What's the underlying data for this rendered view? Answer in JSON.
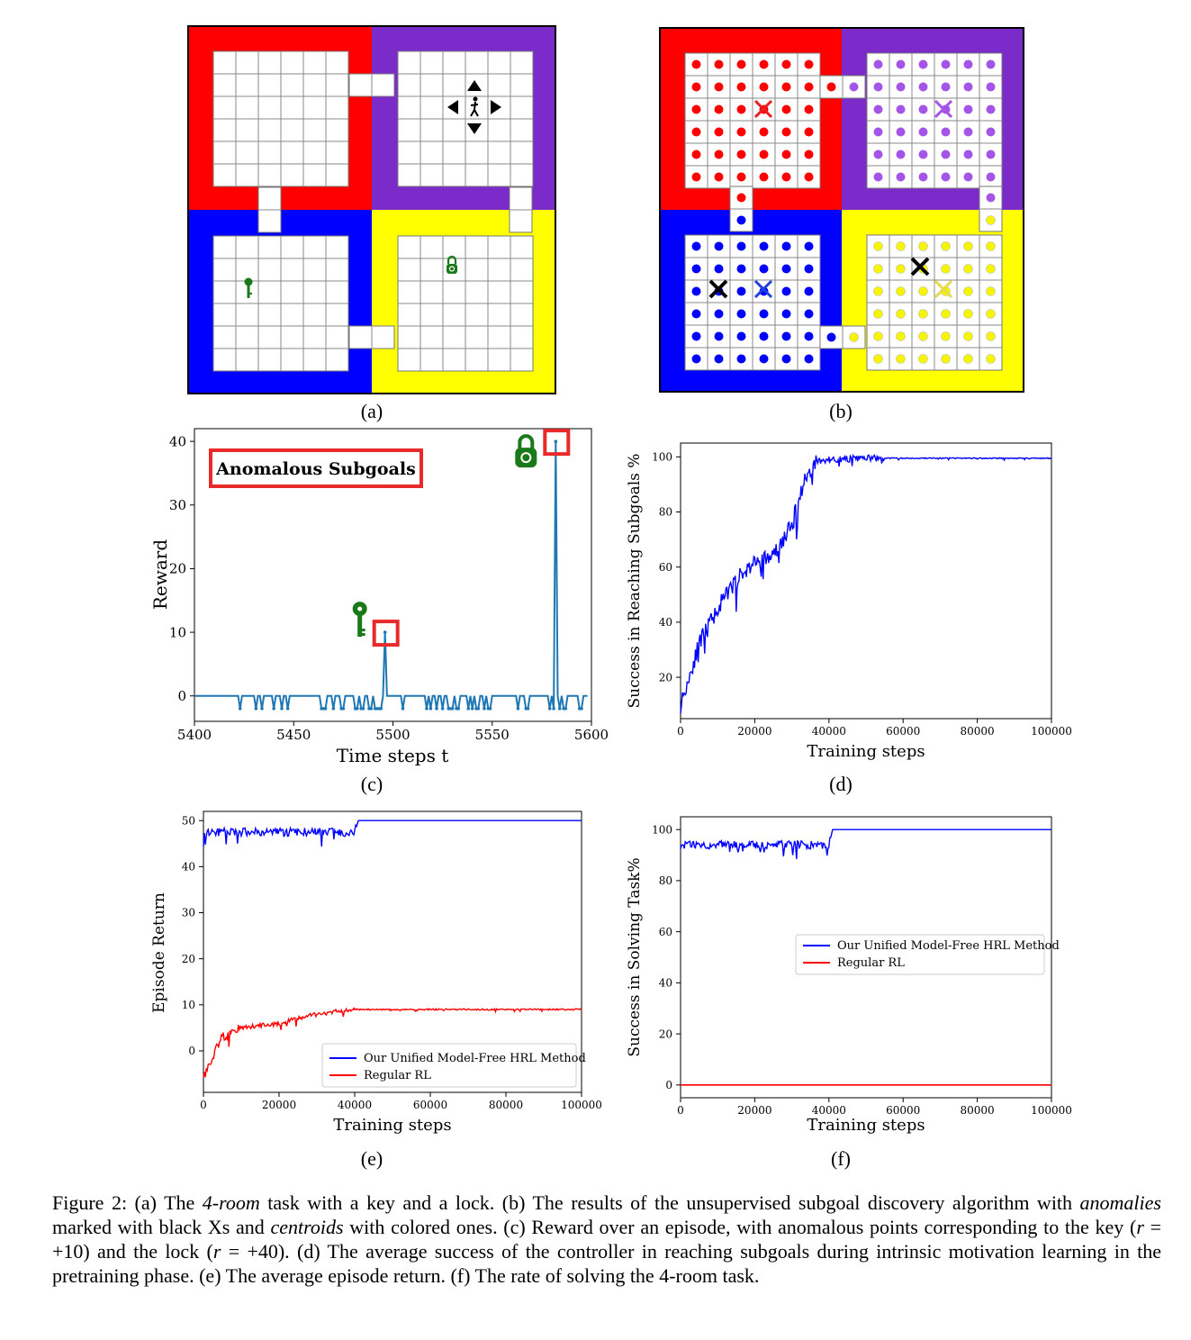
{
  "panels": {
    "a": {
      "label": "(a)"
    },
    "b": {
      "label": "(b)"
    },
    "c": {
      "label": "(c)"
    },
    "d": {
      "label": "(d)"
    },
    "e": {
      "label": "(e)"
    },
    "f": {
      "label": "(f)"
    }
  },
  "colors": {
    "red": "#ff0000",
    "purple": "#7a2bc9",
    "blue": "#0000ff",
    "yellow": "#ffff00",
    "line_blue": "#0000ff",
    "line_red": "#ff0000",
    "reward_line": "#1f77b4",
    "green": "#1a7a1a"
  },
  "icons": {
    "agent": "walking-person-icon",
    "key": "key-icon",
    "lock": "lock-icon"
  },
  "chart_data": [
    {
      "id": "c",
      "type": "line",
      "annotation": "Anomalous Subgoals",
      "xlabel": "Time steps t",
      "ylabel": "Reward",
      "xlim": [
        5400,
        5600
      ],
      "ylim": [
        -4,
        42
      ],
      "xticks": [
        5400,
        5450,
        5500,
        5550,
        5600
      ],
      "yticks": [
        0,
        10,
        20,
        30,
        40
      ],
      "spikes": [
        {
          "x": 5496,
          "y": 10
        },
        {
          "x": 5582,
          "y": 40
        }
      ],
      "baseline": 0,
      "dip": -2
    },
    {
      "id": "d",
      "type": "line",
      "xlabel": "Training steps",
      "ylabel": "Success in Reaching Subgoals %",
      "xlim": [
        0,
        100000
      ],
      "ylim": [
        5,
        105
      ],
      "xticks": [
        0,
        20000,
        40000,
        60000,
        80000,
        100000
      ],
      "yticks": [
        20,
        40,
        60,
        80,
        100
      ],
      "series": [
        {
          "color": "#0000ff",
          "x": [
            0,
            5000,
            10000,
            15000,
            20000,
            25000,
            30000,
            33000,
            36000,
            40000,
            50000,
            100000
          ],
          "y": [
            10,
            32,
            45,
            55,
            62,
            64,
            75,
            90,
            98,
            99,
            99.5,
            99.5
          ]
        }
      ]
    },
    {
      "id": "e",
      "type": "line",
      "xlabel": "Training steps",
      "ylabel": "Episode Return",
      "xlim": [
        0,
        100000
      ],
      "ylim": [
        -9,
        52
      ],
      "xticks": [
        0,
        20000,
        40000,
        60000,
        80000,
        100000
      ],
      "yticks": [
        0,
        10,
        20,
        30,
        40,
        50
      ],
      "legend": [
        "Our Unified Model-Free HRL Method",
        "Regular RL"
      ],
      "series": [
        {
          "name": "Our Unified Model-Free HRL Method",
          "color": "#0000ff",
          "x": [
            0,
            10000,
            20000,
            30000,
            40000,
            41000,
            100000
          ],
          "y": [
            47.5,
            47.5,
            47.5,
            47.5,
            47.5,
            50,
            50
          ]
        },
        {
          "name": "Regular RL",
          "color": "#ff0000",
          "x": [
            0,
            2000,
            5000,
            10000,
            20000,
            30000,
            40000,
            60000,
            100000
          ],
          "y": [
            -6,
            -2,
            3,
            5,
            6,
            8,
            9,
            9,
            9
          ]
        }
      ]
    },
    {
      "id": "f",
      "type": "line",
      "xlabel": "Training steps",
      "ylabel": "Success in Solving Task%",
      "xlim": [
        0,
        100000
      ],
      "ylim": [
        -5,
        105
      ],
      "xticks": [
        0,
        20000,
        40000,
        60000,
        80000,
        100000
      ],
      "yticks": [
        0,
        20,
        40,
        60,
        80,
        100
      ],
      "legend": [
        "Our Unified Model-Free HRL Method",
        "Regular RL"
      ],
      "legend_placement": "center-right",
      "series": [
        {
          "name": "Our Unified Model-Free HRL Method",
          "color": "#0000ff",
          "x": [
            0,
            10000,
            20000,
            30000,
            40000,
            41000,
            100000
          ],
          "y": [
            94,
            94,
            94,
            94,
            94,
            100,
            100
          ]
        },
        {
          "name": "Regular RL",
          "color": "#ff0000",
          "x": [
            0,
            100000
          ],
          "y": [
            0,
            0
          ]
        }
      ]
    }
  ],
  "caption": {
    "p1": "Figure 2: (a) The ",
    "i1": "4-room",
    "p2": " task with a key and a lock. (b) The results of the unsupervised subgoal discovery algorithm with ",
    "i2": "anomalies",
    "p3": " marked with black Xs and ",
    "i3": "centroids",
    "p4": " with colored ones. (c) Reward over an episode, with anomalous points corresponding to the key (",
    "i4": "r",
    "p5": " = +10) and the lock (",
    "i5": "r",
    "p6": " = +40). (d) The average success of the controller in reaching subgoals during intrinsic motivation learning in the pretraining phase. (e) The average episode return. (f) The rate of solving the 4-room task."
  }
}
